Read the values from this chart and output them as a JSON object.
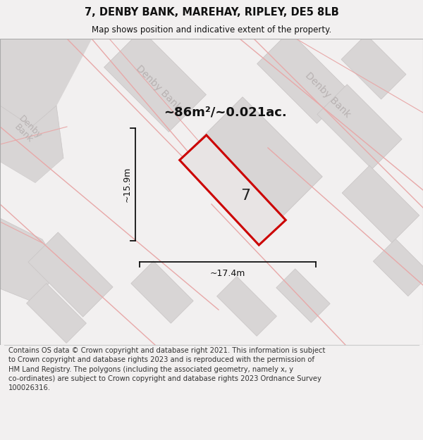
{
  "title": "7, DENBY BANK, MAREHAY, RIPLEY, DE5 8LB",
  "subtitle": "Map shows position and indicative extent of the property.",
  "footer": "Contains OS data © Crown copyright and database right 2021. This information is subject\nto Crown copyright and database rights 2023 and is reproduced with the permission of\nHM Land Registry. The polygons (including the associated geometry, namely x, y\nco-ordinates) are subject to Crown copyright and database rights 2023 Ordnance Survey\n100026316.",
  "area_label": "~86m²/~0.021ac.",
  "property_number": "7",
  "dim_height": "~15.9m",
  "dim_width": "~17.4m",
  "bg_color": "#f2f0f0",
  "block_color": "#d8d5d5",
  "road_line_color": "#e8a8a8",
  "property_fill": "#e8e4e4",
  "property_edge": "#cc0000",
  "dim_color": "#111111",
  "road_label_color": "#b8b2b2",
  "title_color": "#111111",
  "footer_color": "#333333",
  "border_color": "#aaaaaa",
  "title_fontsize": 10.5,
  "subtitle_fontsize": 8.5,
  "footer_fontsize": 7.2,
  "area_fontsize": 13,
  "dim_fontsize": 9,
  "prop_num_fontsize": 16,
  "road_label_fontsize": 10
}
